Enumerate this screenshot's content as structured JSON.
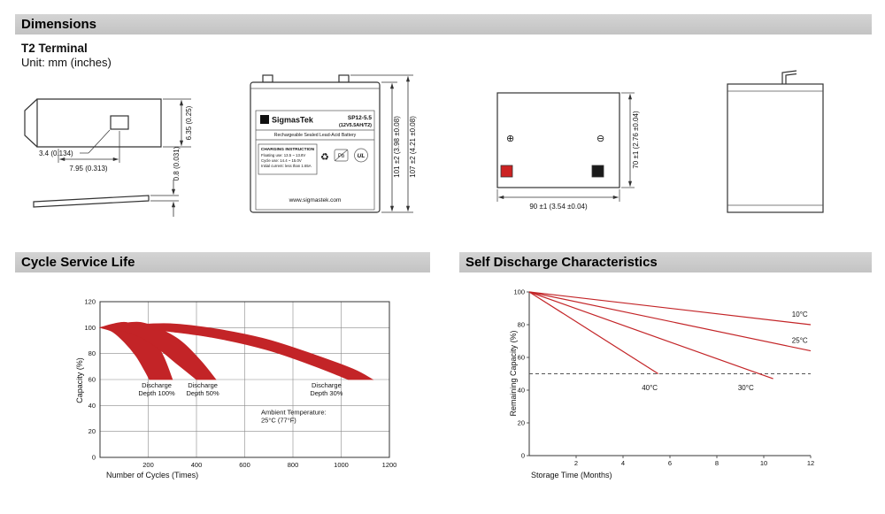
{
  "colors": {
    "header_bg": "#c9c9c9",
    "chart_red": "#c32427",
    "positive_marker_red": "#cc2222",
    "negative_marker_black": "#1a1a1a"
  },
  "sections": {
    "dimensions": "Dimensions",
    "cycle_service_life": "Cycle Service Life",
    "self_discharge": "Self Discharge Characteristics"
  },
  "dimensions": {
    "terminal_type": "T2 Terminal",
    "unit": "Unit: mm (inches)",
    "terminal_detail": {
      "width": "6.35 (0.25)",
      "hole": "3.4 (0.134)",
      "hole_offset": "7.95 (0.313)",
      "thickness": "0.8 (0.031)"
    },
    "front_view": {
      "height_case": "101 ±2 (3.98 ±0.08)",
      "height_total": "107 ±2 (4.21 ±0.08)"
    },
    "top_view": {
      "width": "90 ±1 (3.54 ±0.04)",
      "depth": "70 ±1 (2.76 ±0.04)",
      "positive_symbol": "⊕",
      "negative_symbol": "⊖"
    }
  },
  "battery_label": {
    "logo_letter": "S",
    "brand": "SigmasTek",
    "model": "SP12-5.5",
    "spec": "(12V5.5AH/T2)",
    "type_line": "Rechargeable Sealed Lead-Acid Battery",
    "charging_title": "CHARGING INSTRUCTION",
    "charging_line1": "Floating use: 13.5 ~ 13.8V",
    "charging_line2": "Cycle use: 14.4 ~ 15.0V",
    "charging_line3": "Initial current: less than 1.65A",
    "recycle_icon": "♻",
    "pb_label": "Pb",
    "ul_label": "UL",
    "website": "www.sigmastek.com"
  },
  "chart_data": [
    {
      "id": "cycle_life",
      "type": "area",
      "title": "Cycle Service Life",
      "xlabel": "Number of Cycles (Times)",
      "ylabel": "Capacity (%)",
      "xlim": [
        0,
        1200
      ],
      "ylim": [
        0,
        120
      ],
      "xticks": [
        200,
        400,
        600,
        800,
        1000,
        1200
      ],
      "yticks": [
        0,
        20,
        40,
        60,
        80,
        100,
        120
      ],
      "grid": true,
      "legend_position": "none",
      "line_color": "#c32427",
      "series": [
        {
          "name": "Discharge Depth 100%",
          "upper": [
            [
              0,
              100
            ],
            [
              60,
              103
            ],
            [
              110,
              104
            ],
            [
              170,
              99
            ],
            [
              225,
              90
            ],
            [
              265,
              77
            ],
            [
              300,
              60
            ]
          ],
          "lower": [
            [
              0,
              100
            ],
            [
              50,
              97
            ],
            [
              100,
              89
            ],
            [
              150,
              78
            ],
            [
              185,
              67
            ],
            [
              205,
              60
            ]
          ]
        },
        {
          "name": "Discharge Depth 50%",
          "upper": [
            [
              0,
              100
            ],
            [
              90,
              103
            ],
            [
              170,
              104
            ],
            [
              260,
              98
            ],
            [
              340,
              89
            ],
            [
              420,
              74
            ],
            [
              480,
              60
            ]
          ],
          "lower": [
            [
              0,
              100
            ],
            [
              80,
              98
            ],
            [
              160,
              93
            ],
            [
              240,
              84
            ],
            [
              320,
              72
            ],
            [
              400,
              60
            ]
          ]
        },
        {
          "name": "Discharge Depth 30%",
          "upper": [
            [
              0,
              100
            ],
            [
              130,
              102
            ],
            [
              290,
              103
            ],
            [
              480,
              99
            ],
            [
              690,
              91
            ],
            [
              890,
              79
            ],
            [
              1050,
              68
            ],
            [
              1130,
              60
            ]
          ],
          "lower": [
            [
              0,
              100
            ],
            [
              130,
              100
            ],
            [
              290,
              97
            ],
            [
              480,
              92
            ],
            [
              690,
              83
            ],
            [
              880,
              71
            ],
            [
              1030,
              60
            ]
          ]
        }
      ],
      "annotations": [
        {
          "text": "Discharge\nDepth 100%",
          "x": 235,
          "y": 54,
          "anchor": "middle"
        },
        {
          "text": "Discharge\nDepth 50%",
          "x": 426,
          "y": 54,
          "anchor": "middle"
        },
        {
          "text": "Discharge\nDepth 30%",
          "x": 939,
          "y": 54,
          "anchor": "middle"
        },
        {
          "text": "Ambient Temperature:\n25°C (77°F)",
          "x": 668,
          "y": 33,
          "anchor": "start"
        }
      ]
    },
    {
      "id": "self_discharge",
      "type": "line",
      "title": "Self Discharge Characteristics",
      "xlabel": "Storage Time (Months)",
      "ylabel": "Remaining Capacity (%)",
      "xlim": [
        0,
        12
      ],
      "ylim": [
        0,
        100
      ],
      "xticks": [
        2,
        4,
        6,
        8,
        10,
        12
      ],
      "yticks": [
        0,
        20,
        40,
        60,
        80,
        100
      ],
      "grid": false,
      "legend_position": "inline-labels",
      "line_color": "#c32427",
      "dashed_line_y": 50,
      "series": [
        {
          "name": "10°C",
          "points": [
            [
              0,
              100
            ],
            [
              12,
              80
            ]
          ],
          "label_pos": [
            11.2,
            85
          ]
        },
        {
          "name": "25°C",
          "points": [
            [
              0,
              100
            ],
            [
              12,
              64
            ]
          ],
          "label_pos": [
            11.2,
            69
          ]
        },
        {
          "name": "30°C",
          "points": [
            [
              0,
              100
            ],
            [
              10.4,
              47
            ]
          ],
          "label_pos": [
            8.9,
            40
          ]
        },
        {
          "name": "40°C",
          "points": [
            [
              0,
              100
            ],
            [
              5.5,
              50
            ]
          ],
          "label_pos": [
            4.8,
            40
          ]
        }
      ]
    }
  ]
}
